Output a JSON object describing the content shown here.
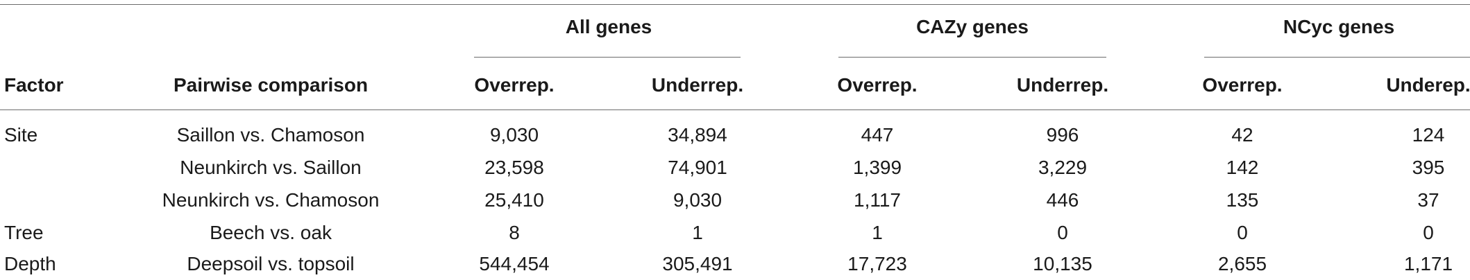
{
  "table": {
    "group_headers": [
      "All genes",
      "CAZy genes",
      "NCyc genes"
    ],
    "column_headers": [
      "Factor",
      "Pairwise comparison",
      "Overrep.",
      "Underrep.",
      "Overrep.",
      "Underrep.",
      "Overrep.",
      "Underep."
    ],
    "rows": [
      [
        "Site",
        "Saillon vs. Chamoson",
        "9,030",
        "34,894",
        "447",
        "996",
        "42",
        "124"
      ],
      [
        "",
        "Neunkirch vs. Saillon",
        "23,598",
        "74,901",
        "1,399",
        "3,229",
        "142",
        "395"
      ],
      [
        "",
        "Neunkirch vs. Chamoson",
        "25,410",
        "9,030",
        "1,117",
        "446",
        "135",
        "37"
      ],
      [
        "Tree",
        "Beech vs. oak",
        "8",
        "1",
        "1",
        "0",
        "0",
        "0"
      ],
      [
        "Depth",
        "Deepsoil vs. topsoil",
        "544,454",
        "305,491",
        "17,723",
        "10,135",
        "2,655",
        "1,171"
      ]
    ]
  }
}
